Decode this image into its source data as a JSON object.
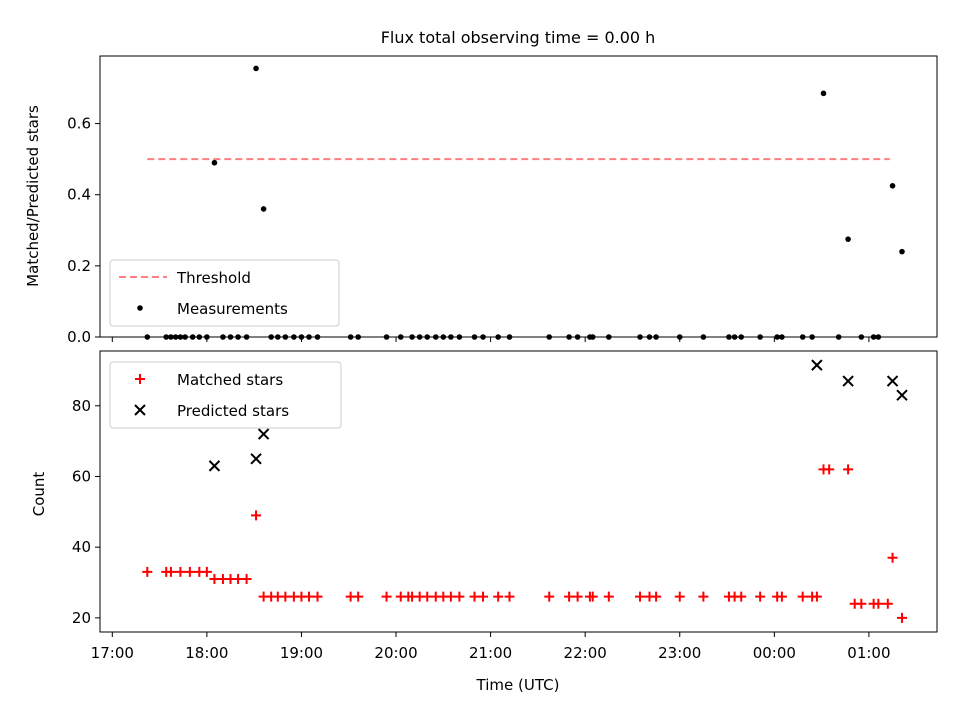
{
  "chart_data": {
    "title": "Flux total observing time = 0.00 h",
    "xlabel": "Time (UTC)",
    "x_unit": "hours since 17:00 UTC",
    "xlim": [
      -0.13,
      8.72
    ],
    "xticks": [
      {
        "value": 0,
        "label": "17:00"
      },
      {
        "value": 1,
        "label": "18:00"
      },
      {
        "value": 2,
        "label": "19:00"
      },
      {
        "value": 3,
        "label": "20:00"
      },
      {
        "value": 4,
        "label": "21:00"
      },
      {
        "value": 5,
        "label": "22:00"
      },
      {
        "value": 6,
        "label": "23:00"
      },
      {
        "value": 7,
        "label": "00:00"
      },
      {
        "value": 8,
        "label": "01:00"
      }
    ],
    "panels": [
      {
        "type": "scatter",
        "ylabel": "Matched/Predicted stars",
        "ylim": [
          0,
          0.79
        ],
        "yticks": [
          {
            "value": 0,
            "label": "0.0"
          },
          {
            "value": 0.2,
            "label": "0.2"
          },
          {
            "value": 0.4,
            "label": "0.4"
          },
          {
            "value": 0.6,
            "label": "0.6"
          }
        ],
        "legend": {
          "position": "lower-left"
        },
        "series": [
          {
            "name": "Threshold",
            "kind": "dashed-line",
            "color": "#ff7f7f",
            "x": [
              0.37,
              8.22
            ],
            "y": [
              0.5,
              0.5
            ]
          },
          {
            "name": "Measurements",
            "kind": "dot",
            "color": "#000000",
            "x": [
              0.37,
              0.57,
              0.62,
              0.67,
              0.72,
              0.77,
              0.85,
              0.92,
              1.0,
              1.08,
              1.17,
              1.25,
              1.33,
              1.42,
              1.52,
              1.6,
              1.68,
              1.75,
              1.83,
              1.92,
              2.0,
              2.08,
              2.17,
              2.52,
              2.6,
              2.9,
              3.05,
              3.17,
              3.25,
              3.33,
              3.42,
              3.5,
              3.58,
              3.67,
              3.83,
              3.92,
              4.08,
              4.2,
              4.62,
              4.83,
              4.92,
              5.05,
              5.08,
              5.25,
              5.58,
              5.68,
              5.75,
              6.0,
              6.25,
              6.52,
              6.58,
              6.65,
              6.85,
              7.03,
              7.08,
              7.3,
              7.4,
              7.52,
              7.68,
              7.78,
              7.92,
              8.05,
              8.1
            ],
            "y": [
              0,
              0,
              0,
              0,
              0,
              0,
              0,
              0,
              0,
              0.49,
              0,
              0,
              0,
              0,
              0.755,
              0.36,
              0,
              0,
              0,
              0,
              0,
              0,
              0,
              0,
              0,
              0,
              0,
              0,
              0,
              0,
              0,
              0,
              0,
              0,
              0,
              0,
              0,
              0,
              0,
              0,
              0,
              0,
              0,
              0,
              0,
              0,
              0,
              0,
              0,
              0,
              0,
              0,
              0,
              0,
              0,
              0,
              0,
              0.685,
              0,
              0.275,
              0,
              0,
              0
            ]
          },
          {
            "name": "Measurements (late)",
            "kind": "dot",
            "color": "#000000",
            "legend": false,
            "x": [
              8.25,
              8.35
            ],
            "y": [
              0.425,
              0.24
            ]
          }
        ]
      },
      {
        "type": "scatter",
        "ylabel": "Count",
        "ylim": [
          16,
          95.5
        ],
        "yticks": [
          {
            "value": 20,
            "label": "20"
          },
          {
            "value": 40,
            "label": "40"
          },
          {
            "value": 60,
            "label": "60"
          },
          {
            "value": 80,
            "label": "80"
          }
        ],
        "legend": {
          "position": "upper-left"
        },
        "series": [
          {
            "name": "Matched stars",
            "kind": "plus",
            "color": "#ff0000",
            "x": [
              0.37,
              0.57,
              0.62,
              0.72,
              0.82,
              0.92,
              1.0,
              1.08,
              1.17,
              1.25,
              1.33,
              1.42,
              1.52,
              1.6,
              1.68,
              1.75,
              1.83,
              1.92,
              2.0,
              2.08,
              2.17,
              2.52,
              2.6,
              2.9,
              3.05,
              3.13,
              3.17,
              3.25,
              3.33,
              3.42,
              3.5,
              3.58,
              3.67,
              3.83,
              3.92,
              4.08,
              4.2,
              4.62,
              4.83,
              4.92,
              5.05,
              5.08,
              5.25,
              5.58,
              5.68,
              5.75,
              6.0,
              6.25,
              6.52,
              6.58,
              6.65,
              6.85,
              7.03,
              7.08,
              7.3,
              7.4,
              7.45,
              7.52,
              7.58,
              7.78,
              7.85,
              7.92,
              8.05,
              8.1,
              8.2,
              8.25,
              8.35
            ],
            "y": [
              33,
              33,
              33,
              33,
              33,
              33,
              33,
              31,
              31,
              31,
              31,
              31,
              49,
              26,
              26,
              26,
              26,
              26,
              26,
              26,
              26,
              26,
              26,
              26,
              26,
              26,
              26,
              26,
              26,
              26,
              26,
              26,
              26,
              26,
              26,
              26,
              26,
              26,
              26,
              26,
              26,
              26,
              26,
              26,
              26,
              26,
              26,
              26,
              26,
              26,
              26,
              26,
              26,
              26,
              26,
              26,
              26,
              62,
              62,
              62,
              24,
              24,
              24,
              24,
              24,
              37,
              20
            ]
          },
          {
            "name": "Predicted stars",
            "kind": "x",
            "color": "#000000",
            "x": [
              1.08,
              1.52,
              1.6,
              7.45,
              7.78,
              8.25,
              8.35
            ],
            "y": [
              63,
              65,
              72,
              91.5,
              87,
              87,
              83
            ]
          }
        ]
      }
    ]
  }
}
